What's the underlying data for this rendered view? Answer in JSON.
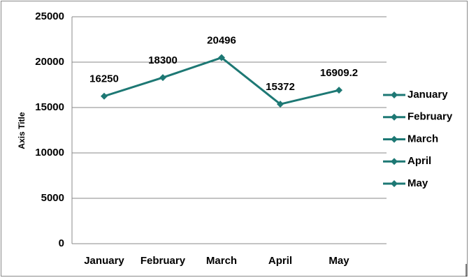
{
  "chart_data": {
    "type": "line",
    "y_axis_title": "Axis Title",
    "categories": [
      "January",
      "February",
      "March",
      "April",
      "May"
    ],
    "values": [
      16250,
      18300,
      20496,
      15372,
      16909.2
    ],
    "color": "#1d7874",
    "ylim": [
      0,
      25000
    ],
    "yticks": [
      0,
      5000,
      10000,
      15000,
      20000,
      25000
    ],
    "grid": true,
    "legend": "right"
  }
}
